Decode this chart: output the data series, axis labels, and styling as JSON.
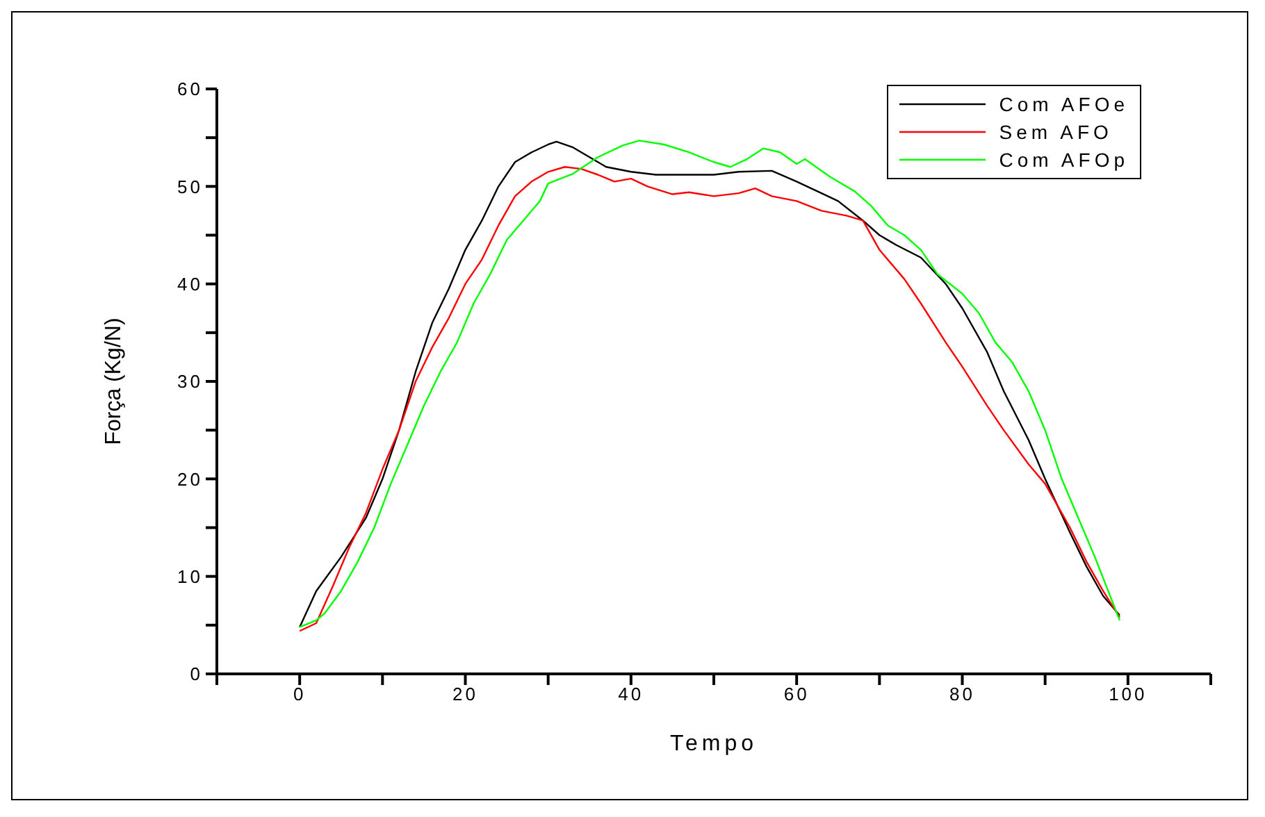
{
  "chart_data": {
    "type": "line",
    "xlabel": "Tempo",
    "ylabel": "Força (Kg/N)",
    "xlim": [
      -10,
      110
    ],
    "xticks": [
      {
        "value": -10,
        "label": null
      },
      0,
      {
        "value": 10,
        "label": null
      },
      20,
      {
        "value": 30,
        "label": null
      },
      40,
      {
        "value": 50,
        "label": null
      },
      60,
      {
        "value": 70,
        "label": null
      },
      80,
      {
        "value": 90,
        "label": null
      },
      100,
      {
        "value": 110,
        "label": null
      }
    ],
    "ylim": [
      0,
      60
    ],
    "yticks": [
      0,
      {
        "value": 5,
        "label": null
      },
      10,
      {
        "value": 15,
        "label": null
      },
      20,
      {
        "value": 25,
        "label": null
      },
      30,
      {
        "value": 35,
        "label": null
      },
      40,
      {
        "value": 45,
        "label": null
      },
      50,
      {
        "value": 55,
        "label": null
      },
      60
    ],
    "grid": false,
    "legend": "top right",
    "marker": "none",
    "line_style": "solid",
    "series": [
      {
        "name": "Com AFOe",
        "color": "#000000",
        "x": [
          0,
          2,
          5,
          8,
          10,
          12,
          14,
          16,
          18,
          20,
          22,
          24,
          26,
          28,
          30,
          31,
          33,
          35,
          37,
          40,
          43,
          46,
          50,
          53,
          57,
          60,
          63,
          65,
          68,
          70,
          72,
          75,
          78,
          80,
          83,
          85,
          88,
          90,
          93,
          95,
          97,
          99
        ],
        "values": [
          4.8,
          8.5,
          12,
          16,
          20,
          25,
          31,
          36,
          39.5,
          43.5,
          46.5,
          50,
          52.5,
          53.5,
          54.3,
          54.6,
          54,
          53,
          52,
          51.5,
          51.2,
          51.2,
          51.2,
          51.5,
          51.6,
          50.5,
          49.3,
          48.5,
          46.5,
          45,
          44,
          42.7,
          40,
          37.5,
          33,
          29,
          24,
          20,
          14.5,
          11,
          8,
          6
        ]
      },
      {
        "name": "Sem AFO",
        "color": "#ff0000",
        "x": [
          0,
          2,
          4,
          6,
          8,
          10,
          12,
          14,
          16,
          18,
          20,
          22,
          24,
          26,
          28,
          30,
          32,
          34,
          36,
          38,
          40,
          42,
          45,
          47,
          50,
          53,
          55,
          57,
          60,
          63,
          66,
          68,
          70,
          73,
          75,
          78,
          80,
          83,
          85,
          88,
          90,
          93,
          95,
          97,
          99
        ],
        "values": [
          4.4,
          5.2,
          9,
          13,
          16.5,
          21,
          25,
          30,
          33.5,
          36.5,
          40,
          42.5,
          46,
          49,
          50.5,
          51.5,
          52,
          51.8,
          51.2,
          50.5,
          50.8,
          50,
          49.2,
          49.4,
          49,
          49.3,
          49.8,
          49,
          48.5,
          47.5,
          47,
          46.5,
          43.5,
          40.5,
          38,
          34,
          31.5,
          27.5,
          25,
          21.5,
          19.5,
          15,
          11.5,
          8.5,
          5.8
        ]
      },
      {
        "name": "Com AFOp",
        "color": "#00ff00",
        "x": [
          0,
          2,
          3,
          5,
          7,
          9,
          11,
          13,
          15,
          17,
          19,
          21,
          23,
          25,
          27,
          29,
          30,
          33,
          36,
          39,
          41,
          44,
          47,
          50,
          52,
          54,
          56,
          58,
          60,
          61,
          64,
          67,
          69,
          71,
          73,
          75,
          77,
          80,
          82,
          84,
          86,
          88,
          90,
          92,
          94,
          96,
          99
        ],
        "values": [
          4.8,
          5.5,
          6.2,
          8.5,
          11.5,
          15,
          19.5,
          23.5,
          27.5,
          31,
          34,
          38,
          41,
          44.5,
          46.5,
          48.5,
          50.3,
          51.3,
          53,
          54.2,
          54.7,
          54.3,
          53.5,
          52.5,
          52,
          52.8,
          53.9,
          53.5,
          52.3,
          52.8,
          51,
          49.5,
          48,
          46,
          45,
          43.5,
          41,
          39,
          37,
          34,
          32,
          29,
          25,
          20,
          16,
          12,
          5.5
        ]
      }
    ]
  }
}
